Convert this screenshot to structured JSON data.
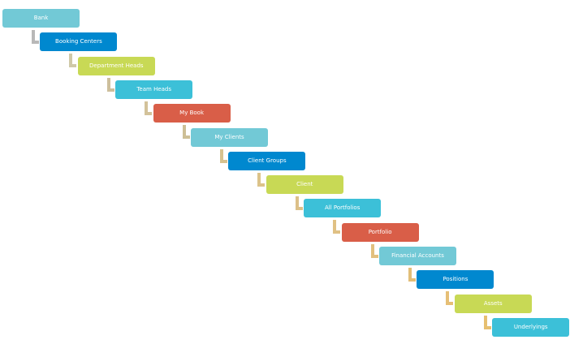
{
  "diagram": {
    "nodes": [
      {
        "label": "Bank",
        "color": "#72c9d6"
      },
      {
        "label": "Booking Centers",
        "color": "#0088cf"
      },
      {
        "label": "Department Heads",
        "color": "#c8d955"
      },
      {
        "label": "Team Heads",
        "color": "#3cc0d8"
      },
      {
        "label": "My Book",
        "color": "#d95e48"
      },
      {
        "label": "My Clients",
        "color": "#72c9d6"
      },
      {
        "label": "Client Groups",
        "color": "#0088cf"
      },
      {
        "label": "Client",
        "color": "#c8d955"
      },
      {
        "label": "All Portfolios",
        "color": "#3cc0d8"
      },
      {
        "label": "Portfolio",
        "color": "#d95e48"
      },
      {
        "label": "Financial Accounts",
        "color": "#72c9d6"
      },
      {
        "label": "Positions",
        "color": "#0088cf"
      },
      {
        "label": "Assets",
        "color": "#c8d955"
      },
      {
        "label": "Underlyings",
        "color": "#3cc0d8"
      }
    ],
    "connector_colors": [
      "#b8b8b8",
      "#cfc9a8",
      "#cdbf9c",
      "#d3c29a",
      "#cdbf96",
      "#d6c290",
      "#dcc38a",
      "#dcc088",
      "#e0c184",
      "#e2c07e",
      "#e2be78",
      "#e6bf76",
      "#e6bf70"
    ]
  }
}
